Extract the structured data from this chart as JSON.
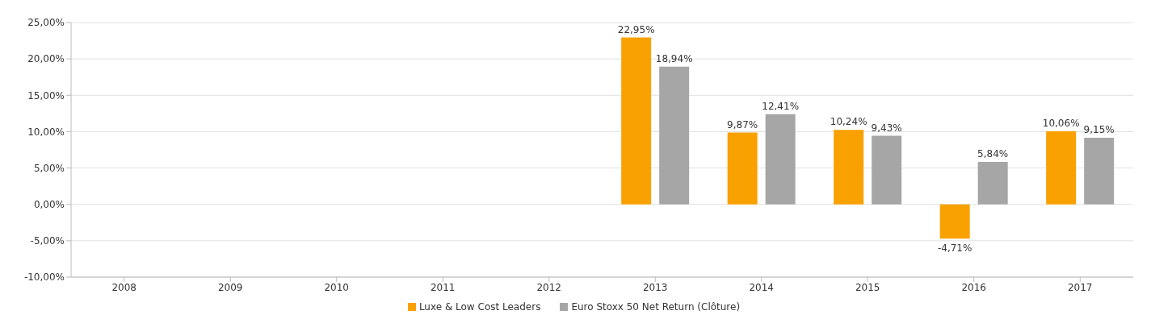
{
  "chart_data": {
    "type": "bar",
    "categories": [
      "2008",
      "2009",
      "2010",
      "2011",
      "2012",
      "2013",
      "2014",
      "2015",
      "2016",
      "2017"
    ],
    "series": [
      {
        "name": "Luxe & Low Cost Leaders",
        "color": "#f9a100",
        "values": [
          null,
          null,
          null,
          null,
          null,
          22.95,
          9.87,
          10.24,
          -4.71,
          10.06
        ],
        "value_labels": [
          null,
          null,
          null,
          null,
          null,
          "22,95%",
          "9,87%",
          "10,24%",
          "-4,71%",
          "10,06%"
        ]
      },
      {
        "name": "Euro Stoxx 50 Net Return (Clôture)",
        "color": "#a6a6a6",
        "values": [
          null,
          null,
          null,
          null,
          null,
          18.94,
          12.41,
          9.43,
          5.84,
          9.15
        ],
        "value_labels": [
          null,
          null,
          null,
          null,
          null,
          "18,94%",
          "12,41%",
          "9,43%",
          "5,84%",
          "9,15%"
        ]
      }
    ],
    "ylim": [
      -10,
      25
    ],
    "yticks": [
      {
        "value": -10,
        "label": "-10,00%"
      },
      {
        "value": -5,
        "label": "-5,00%"
      },
      {
        "value": 0,
        "label": "0,00%"
      },
      {
        "value": 5,
        "label": "5,00%"
      },
      {
        "value": 10,
        "label": "10,00%"
      },
      {
        "value": 15,
        "label": "15,00%"
      },
      {
        "value": 20,
        "label": "20,00%"
      },
      {
        "value": 25,
        "label": "25,00%"
      }
    ],
    "grid": "y",
    "legend": "bottom"
  }
}
